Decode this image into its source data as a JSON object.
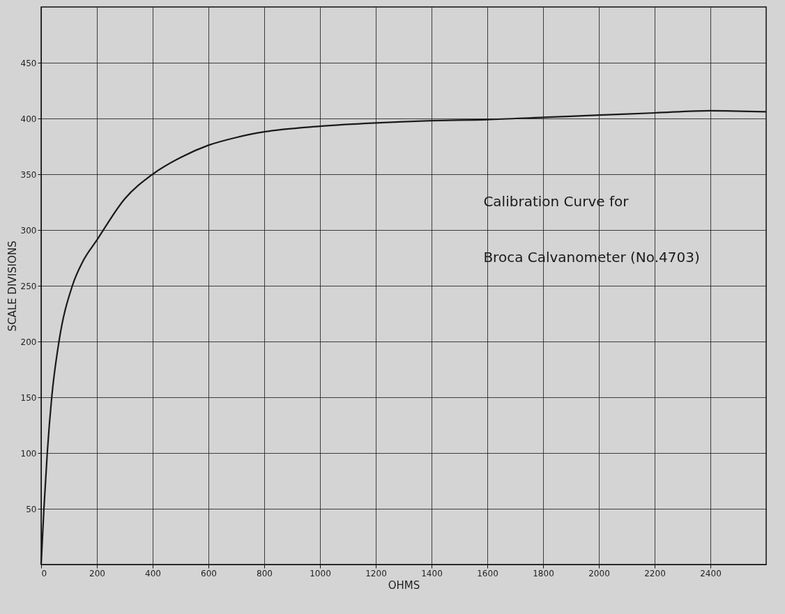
{
  "chart_data": {
    "type": "line",
    "xlabel": "OHMS",
    "ylabel": "SCALE DIVISIONS",
    "annotations": [
      "Calibration Curve for",
      "Broca Calvanometer (No.4703)"
    ],
    "x": [
      0,
      10,
      22,
      38,
      64,
      112,
      150,
      200,
      300,
      400,
      500,
      600,
      700,
      800,
      1000,
      1200,
      1400,
      1600,
      1800,
      2000,
      2200,
      2400,
      2600
    ],
    "series": [
      {
        "color": "#1a1a1a",
        "values": [
          0,
          50,
          100,
          150,
          200,
          250,
          272,
          291,
          328,
          350,
          365,
          376,
          383,
          388,
          393,
          396,
          398,
          399,
          401,
          403,
          405,
          407,
          406
        ]
      }
    ],
    "xlim": [
      0,
      2600
    ],
    "ylim": [
      0,
      500
    ],
    "xticks": [
      0,
      200,
      400,
      600,
      800,
      1000,
      1200,
      1400,
      1600,
      1800,
      2000,
      2200,
      2400
    ],
    "yticks": [
      50,
      100,
      150,
      200,
      250,
      300,
      350,
      400,
      450
    ],
    "grid": true,
    "marker": "none",
    "line_style": "solid"
  }
}
